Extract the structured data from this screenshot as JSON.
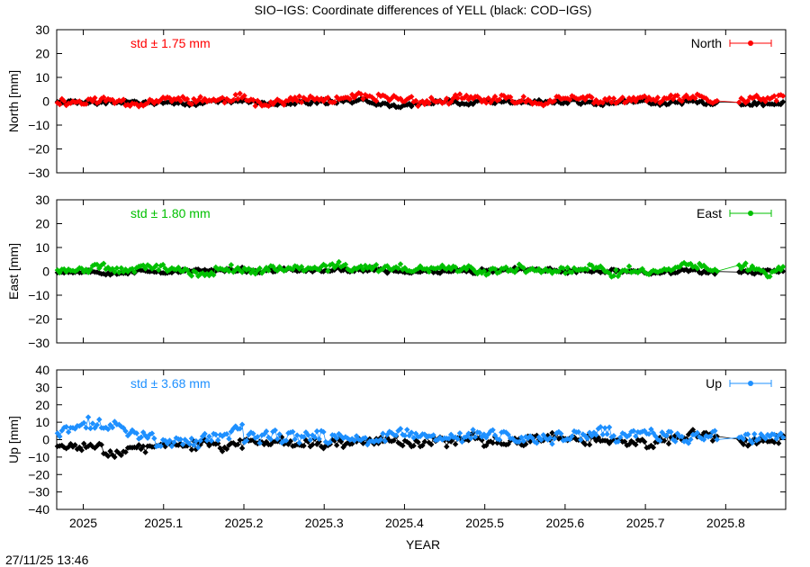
{
  "title": "SIO−IGS: Coordinate differences of YELL (black: COD−IGS)",
  "timestamp": "27/11/25 13:46",
  "xlabel": "YEAR",
  "x_ticks": [
    "2025",
    "2025.1",
    "2025.2",
    "2025.3",
    "2025.4",
    "2025.5",
    "2025.6",
    "2025.7",
    "2025.8"
  ],
  "colors": {
    "north": "#ff0000",
    "east": "#00c000",
    "up": "#1e90ff",
    "reference": "#000000"
  },
  "chart_data": [
    {
      "type": "scatter",
      "name": "north",
      "ylabel": "North [mm]",
      "legend": "North",
      "std_label": "std ± 1.75 mm",
      "xlim": [
        2024.9669,
        2025.8747
      ],
      "ylim": [
        -30,
        30
      ],
      "y_ticks": [
        "30",
        "20",
        "10",
        "0",
        "−10",
        "−20",
        "−30"
      ],
      "y_tick_values": [
        30,
        20,
        10,
        0,
        -10,
        -20,
        -30
      ],
      "legend_position": "top-right",
      "series": [
        {
          "name": "SIO-IGS",
          "color": "#ff0000",
          "amplitude": 1.75,
          "seed": 11,
          "offset": 0.3
        },
        {
          "name": "COD-IGS",
          "color": "#000000",
          "amplitude": 1.0,
          "seed": 29,
          "offset": -0.6
        }
      ]
    },
    {
      "type": "scatter",
      "name": "east",
      "ylabel": "East [mm]",
      "legend": "East",
      "std_label": "std ± 1.80 mm",
      "xlim": [
        2024.9669,
        2025.8747
      ],
      "ylim": [
        -30,
        30
      ],
      "y_ticks": [
        "30",
        "20",
        "10",
        "0",
        "−10",
        "−20",
        "−30"
      ],
      "y_tick_values": [
        30,
        20,
        10,
        0,
        -10,
        -20,
        -30
      ],
      "legend_position": "top-right",
      "series": [
        {
          "name": "SIO-IGS",
          "color": "#00c000",
          "amplitude": 1.8,
          "seed": 47,
          "offset": 0.8
        },
        {
          "name": "COD-IGS",
          "color": "#000000",
          "amplitude": 0.9,
          "seed": 53,
          "offset": 0.2
        }
      ]
    },
    {
      "type": "scatter",
      "name": "up",
      "ylabel": "Up [mm]",
      "legend": "Up",
      "std_label": "std ± 3.68 mm",
      "xlim": [
        2024.9669,
        2025.8747
      ],
      "ylim": [
        -40,
        40
      ],
      "y_ticks": [
        "40",
        "30",
        "20",
        "10",
        "0",
        "−10",
        "−20",
        "−30",
        "−40"
      ],
      "y_tick_values": [
        40,
        30,
        20,
        10,
        0,
        -10,
        -20,
        -30,
        -40
      ],
      "legend_position": "top-right",
      "series": [
        {
          "name": "SIO-IGS",
          "color": "#1e90ff",
          "amplitude": 3.68,
          "seed": 71,
          "offset": 1.2
        },
        {
          "name": "COD-IGS",
          "color": "#000000",
          "amplitude": 3.0,
          "seed": 83,
          "offset": -0.5
        }
      ]
    }
  ]
}
